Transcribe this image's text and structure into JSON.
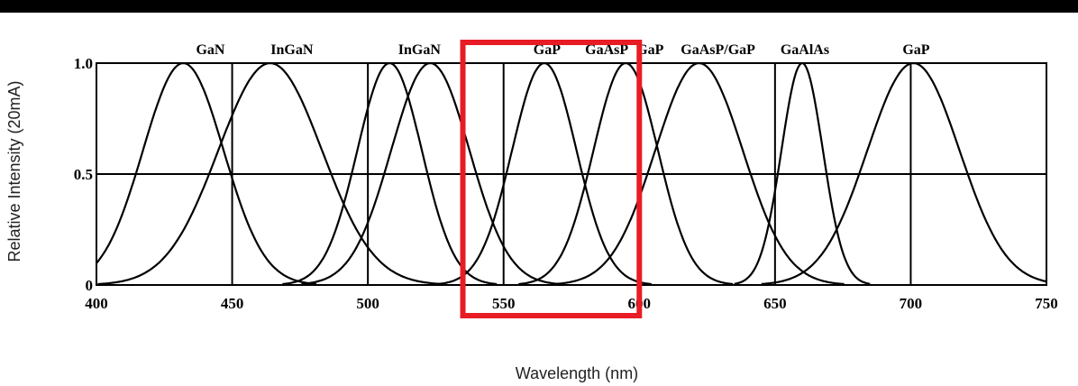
{
  "chart_data": {
    "type": "line",
    "xlabel": "Wavelength (nm)",
    "ylabel": "Relative Intensity (20mA)",
    "xlim": [
      400,
      750
    ],
    "ylim": [
      0,
      1.0
    ],
    "x_ticks": [
      400,
      450,
      500,
      550,
      600,
      650,
      700,
      750
    ],
    "x_tick_labels": [
      "400",
      "450",
      "500",
      "550",
      "600",
      "650",
      "700",
      "750"
    ],
    "y_ticks": [
      0,
      0.5,
      1.0
    ],
    "y_tick_labels": [
      "0",
      "0.5",
      "1.0"
    ],
    "gridlines_x": [
      450,
      500,
      550,
      600,
      650,
      700
    ],
    "gridlines_y": [
      0.5
    ],
    "series": [
      {
        "name": "GaN",
        "peak": 432,
        "fwhm": 35
      },
      {
        "name": "InGaN",
        "peak": 464,
        "fwhm": 45
      },
      {
        "name": "InGaN",
        "peak": 508,
        "fwhm": 28
      },
      {
        "name": "GaP",
        "peak": 523,
        "fwhm": 34
      },
      {
        "name": "GaAsP/GaP",
        "peak": 565,
        "fwhm": 28
      },
      {
        "name": "GaAsP/GaP",
        "peak": 595,
        "fwhm": 28
      },
      {
        "name": "GaAsP/GaP",
        "peak": 622,
        "fwhm": 38
      },
      {
        "name": "GaAlAs",
        "peak": 660,
        "fwhm": 18
      },
      {
        "name": "GaP",
        "peak": 701,
        "fwhm": 40
      }
    ],
    "top_labels": [
      {
        "text": "GaN",
        "x": 442
      },
      {
        "text": "InGaN",
        "x": 472
      },
      {
        "text": "InGaN",
        "x": 519
      },
      {
        "text": "GaP",
        "x": 566
      },
      {
        "text": "GaAsP",
        "x": 588
      },
      {
        "text": "GaP",
        "x": 604
      },
      {
        "text": "GaAsP/GaP",
        "x": 629
      },
      {
        "text": "GaAlAs",
        "x": 661
      },
      {
        "text": "GaP",
        "x": 702
      }
    ],
    "highlight": {
      "x_start": 535,
      "x_end": 600,
      "color": "#e81c24"
    }
  }
}
